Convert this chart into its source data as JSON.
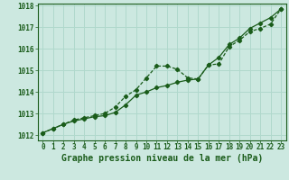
{
  "title": "Graphe pression niveau de la mer (hPa)",
  "background_color": "#cce8e0",
  "grid_color": "#b0d8cc",
  "line_color": "#1a5c1a",
  "x_values": [
    0,
    1,
    2,
    3,
    4,
    5,
    6,
    7,
    8,
    9,
    10,
    11,
    12,
    13,
    14,
    15,
    16,
    17,
    18,
    19,
    20,
    21,
    22,
    23
  ],
  "line1_y": [
    1012.1,
    1012.3,
    1012.5,
    1012.65,
    1012.75,
    1012.85,
    1012.9,
    1013.05,
    1013.4,
    1013.85,
    1014.0,
    1014.2,
    1014.3,
    1014.45,
    1014.55,
    1014.6,
    1015.25,
    1015.6,
    1016.2,
    1016.5,
    1016.95,
    1017.2,
    1017.45,
    1017.85
  ],
  "line2_y": [
    1012.1,
    1012.3,
    1012.5,
    1012.7,
    1012.8,
    1012.9,
    1013.0,
    1013.3,
    1013.8,
    1014.1,
    1014.65,
    1015.2,
    1015.2,
    1015.05,
    1014.65,
    1014.6,
    1015.25,
    1015.3,
    1016.1,
    1016.4,
    1016.8,
    1016.95,
    1017.15,
    1017.85
  ],
  "ylim": [
    1011.75,
    1018.1
  ],
  "yticks": [
    1012,
    1013,
    1014,
    1015,
    1016,
    1017,
    1018
  ],
  "xticks": [
    0,
    1,
    2,
    3,
    4,
    5,
    6,
    7,
    8,
    9,
    10,
    11,
    12,
    13,
    14,
    15,
    16,
    17,
    18,
    19,
    20,
    21,
    22,
    23
  ],
  "tick_fontsize": 5.5,
  "title_fontsize": 7
}
